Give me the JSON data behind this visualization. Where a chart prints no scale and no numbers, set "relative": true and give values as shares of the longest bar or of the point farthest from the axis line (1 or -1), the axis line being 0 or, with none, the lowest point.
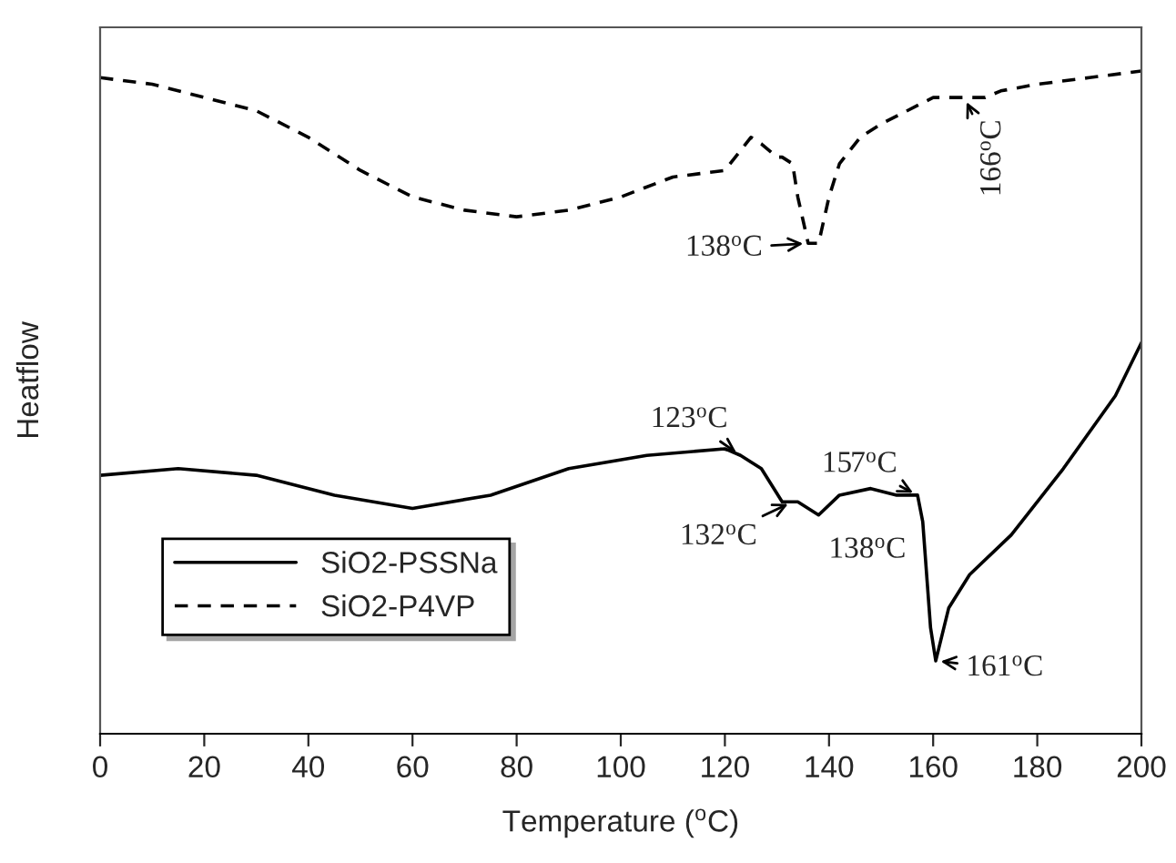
{
  "chart_data": {
    "type": "line",
    "relative": true,
    "xlabel": "Temperature ($^{o}$C)",
    "ylabel": "Heatflow",
    "xlim": [
      0,
      200
    ],
    "xticks": [
      0,
      20,
      40,
      60,
      80,
      100,
      120,
      140,
      160,
      180,
      200
    ],
    "tick_labels": "x",
    "grid": false,
    "legend": "bottom left",
    "marker": "none",
    "series": [
      {
        "name": "SiO2-PSSNa",
        "color": "#000000",
        "line_style": "solid",
        "x": [
          0,
          15,
          30,
          45,
          60,
          75,
          90,
          105,
          120,
          123,
          127,
          131,
          134,
          136,
          138,
          142,
          148,
          153,
          157,
          158,
          159.5,
          160.5,
          163,
          167,
          175,
          185,
          195,
          200
        ],
        "values": [
          0.39,
          0.4,
          0.39,
          0.36,
          0.34,
          0.36,
          0.4,
          0.42,
          0.43,
          0.42,
          0.4,
          0.35,
          0.35,
          0.34,
          0.33,
          0.36,
          0.37,
          0.36,
          0.36,
          0.32,
          0.16,
          0.11,
          0.19,
          0.24,
          0.3,
          0.4,
          0.51,
          0.59
        ]
      },
      {
        "name": "SiO2-P4VP",
        "color": "#000000",
        "line_style": "dashed",
        "x": [
          0,
          10,
          20,
          30,
          40,
          50,
          60,
          70,
          80,
          90,
          100,
          110,
          120,
          125,
          127,
          130,
          131,
          133,
          134,
          136,
          138,
          140,
          142,
          146,
          150,
          160,
          165,
          170,
          173,
          180,
          190,
          200
        ],
        "values": [
          0.99,
          0.98,
          0.96,
          0.94,
          0.9,
          0.85,
          0.81,
          0.79,
          0.78,
          0.79,
          0.81,
          0.84,
          0.85,
          0.9,
          0.89,
          0.87,
          0.87,
          0.86,
          0.81,
          0.74,
          0.74,
          0.81,
          0.86,
          0.9,
          0.92,
          0.96,
          0.96,
          0.96,
          0.97,
          0.98,
          0.99,
          1.0
        ]
      }
    ],
    "annotations": [
      {
        "text": "138$^{o}$C",
        "x": 136,
        "y": 0.74
      },
      {
        "text": "166$^{o}$C",
        "x": 166,
        "y": 0.96
      },
      {
        "text": "123$^{o}$C",
        "x": 123,
        "y": 0.42
      },
      {
        "text": "132$^{o}$C",
        "x": 133,
        "y": 0.35
      },
      {
        "text": "138$^{o}$C",
        "x": 138,
        "y": 0.33
      },
      {
        "text": "157$^{o}$C",
        "x": 157,
        "y": 0.36
      },
      {
        "text": "161$^{o}$C",
        "x": 160.5,
        "y": 0.11
      }
    ]
  }
}
